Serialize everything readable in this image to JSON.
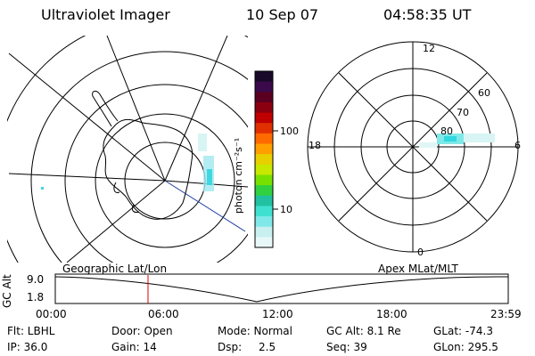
{
  "header": {
    "title": "Ultraviolet Imager",
    "date": "10 Sep 07",
    "time": "04:58:35 UT"
  },
  "colorbar": {
    "unit_label": "photon cm⁻²s⁻¹",
    "ticks": [
      "100",
      "10"
    ],
    "colors": [
      "#1a0a2a",
      "#3a0a4a",
      "#5a0020",
      "#8a0010",
      "#c00000",
      "#e03000",
      "#ff6a00",
      "#ffa000",
      "#e8d000",
      "#c8e800",
      "#78e000",
      "#30d040",
      "#20c0a0",
      "#40e0d0",
      "#80e8e8",
      "#c8f0f0",
      "#e8f8f8"
    ]
  },
  "polar_plot": {
    "lat_labels": [
      "80",
      "70",
      "60"
    ],
    "mlt_labels": {
      "top": "12",
      "left": "18",
      "right": "6",
      "bottom": "0"
    }
  },
  "timeline": {
    "left_label": "Geographic Lat/Lon",
    "right_label": "Apex MLat/MLT",
    "axis_title": "GC Alt",
    "y_ticks": [
      "9.0",
      "1.8"
    ],
    "x_ticks": [
      "00:00",
      "06:00",
      "12:00",
      "18:00",
      "23:59"
    ]
  },
  "status": {
    "row1": {
      "flt": "Flt: LBHL",
      "door": "Door: Open",
      "mode": "Mode: Normal",
      "gcalt": "GC Alt: 8.1 Re",
      "glat": "GLat: -74.3"
    },
    "row2": {
      "ip": "IP: 36.0",
      "gain": "Gain: 14",
      "dsp_label": "Dsp:",
      "dsp_val": "2.5",
      "seq": "Seq: 39",
      "glon": "GLon: 295.5"
    }
  }
}
